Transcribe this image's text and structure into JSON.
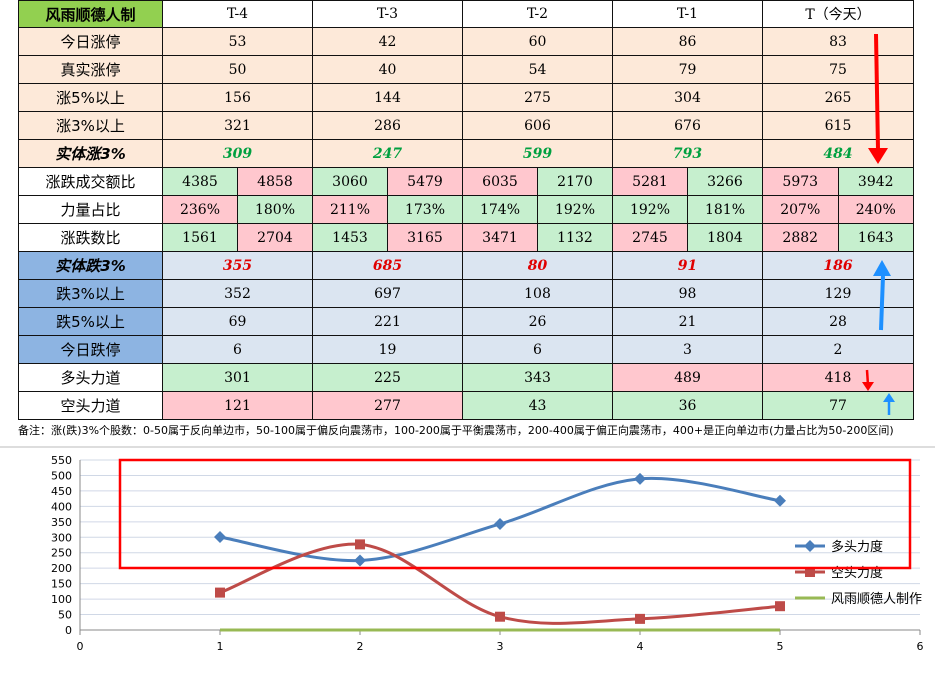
{
  "table": {
    "header": [
      "风雨顺德人制",
      "T-4",
      "T-3",
      "T-2",
      "T-1",
      "T（今天）"
    ],
    "rows_single": [
      {
        "label": "今日涨停",
        "values": [
          "53",
          "42",
          "60",
          "86",
          "83"
        ],
        "style": "peach"
      },
      {
        "label": "真实涨停",
        "values": [
          "50",
          "40",
          "54",
          "79",
          "75"
        ],
        "style": "peach"
      },
      {
        "label": "涨5%以上",
        "values": [
          "156",
          "144",
          "275",
          "304",
          "265"
        ],
        "style": "peach"
      },
      {
        "label": "涨3%以上",
        "values": [
          "321",
          "286",
          "606",
          "676",
          "615"
        ],
        "style": "peach"
      },
      {
        "label": "实体涨3%",
        "values": [
          "309",
          "247",
          "599",
          "793",
          "484"
        ],
        "style": "peach",
        "emph": "green"
      }
    ],
    "rows_split": [
      {
        "label": "涨跌成交额比",
        "values": [
          "4385",
          "4858",
          "3060",
          "5479",
          "6035",
          "2170",
          "5281",
          "3266",
          "5973",
          "3942"
        ],
        "colors": [
          "green",
          "pink",
          "green",
          "pink",
          "pink",
          "green",
          "pink",
          "green",
          "pink",
          "green"
        ]
      },
      {
        "label": "力量占比",
        "values": [
          "236%",
          "180%",
          "211%",
          "173%",
          "174%",
          "192%",
          "192%",
          "181%",
          "207%",
          "240%"
        ],
        "colors": [
          "pink",
          "green",
          "pink",
          "green",
          "green",
          "green",
          "green",
          "green",
          "pink",
          "pink"
        ]
      },
      {
        "label": "涨跌数比",
        "values": [
          "1561",
          "2704",
          "1453",
          "3165",
          "3471",
          "1132",
          "2745",
          "1804",
          "2882",
          "1643"
        ],
        "colors": [
          "green",
          "pink",
          "green",
          "pink",
          "pink",
          "green",
          "pink",
          "green",
          "pink",
          "green"
        ]
      }
    ],
    "rows_down": [
      {
        "label": "实体跌3%",
        "values": [
          "355",
          "685",
          "80",
          "91",
          "186"
        ],
        "emph": "red"
      },
      {
        "label": "跌3%以上",
        "values": [
          "352",
          "697",
          "108",
          "98",
          "129"
        ]
      },
      {
        "label": "跌5%以上",
        "values": [
          "69",
          "221",
          "26",
          "21",
          "28"
        ]
      },
      {
        "label": "今日跌停",
        "values": [
          "6",
          "19",
          "6",
          "3",
          "2"
        ]
      }
    ],
    "rows_force": [
      {
        "label": "多头力道",
        "values": [
          "301",
          "225",
          "343",
          "489",
          "418"
        ],
        "colors": [
          "green",
          "green",
          "green",
          "pink",
          "pink"
        ]
      },
      {
        "label": "空头力道",
        "values": [
          "121",
          "277",
          "43",
          "36",
          "77"
        ],
        "colors": [
          "pink",
          "pink",
          "green",
          "green",
          "green"
        ]
      }
    ]
  },
  "note": "备注：涨(跌)3%个股数：0-50属于反向单边市，50-100属于偏反向震荡市，100-200属于平衡震荡市，200-400属于偏正向震荡市，400+是正向单边市(力量占比为50-200区间)",
  "colors": {
    "line_bull": "#4a7ebb",
    "line_bear": "#be4b48",
    "line_third": "#98b954",
    "highlight_box": "#ff0000",
    "arrow_red": "#ff0000",
    "arrow_blue": "#1e90ff"
  },
  "chart_data": {
    "type": "line",
    "x": [
      1,
      2,
      3,
      4,
      5
    ],
    "xlim": [
      0,
      6
    ],
    "ylim": [
      0,
      550
    ],
    "xticks": [
      "0",
      "1",
      "2",
      "3",
      "4",
      "5",
      "6"
    ],
    "yticks": [
      "0",
      "50",
      "100",
      "150",
      "200",
      "250",
      "300",
      "350",
      "400",
      "450",
      "500",
      "550"
    ],
    "grid": true,
    "legend_position": "right",
    "series": [
      {
        "name": "多头力度",
        "values": [
          301,
          225,
          343,
          489,
          418
        ],
        "marker": "diamond"
      },
      {
        "name": "空头力度",
        "values": [
          121,
          277,
          43,
          36,
          77
        ],
        "marker": "square"
      },
      {
        "name": "风雨顺德人制作",
        "values": [
          0,
          0,
          0,
          0,
          0
        ],
        "marker": "none"
      }
    ]
  }
}
